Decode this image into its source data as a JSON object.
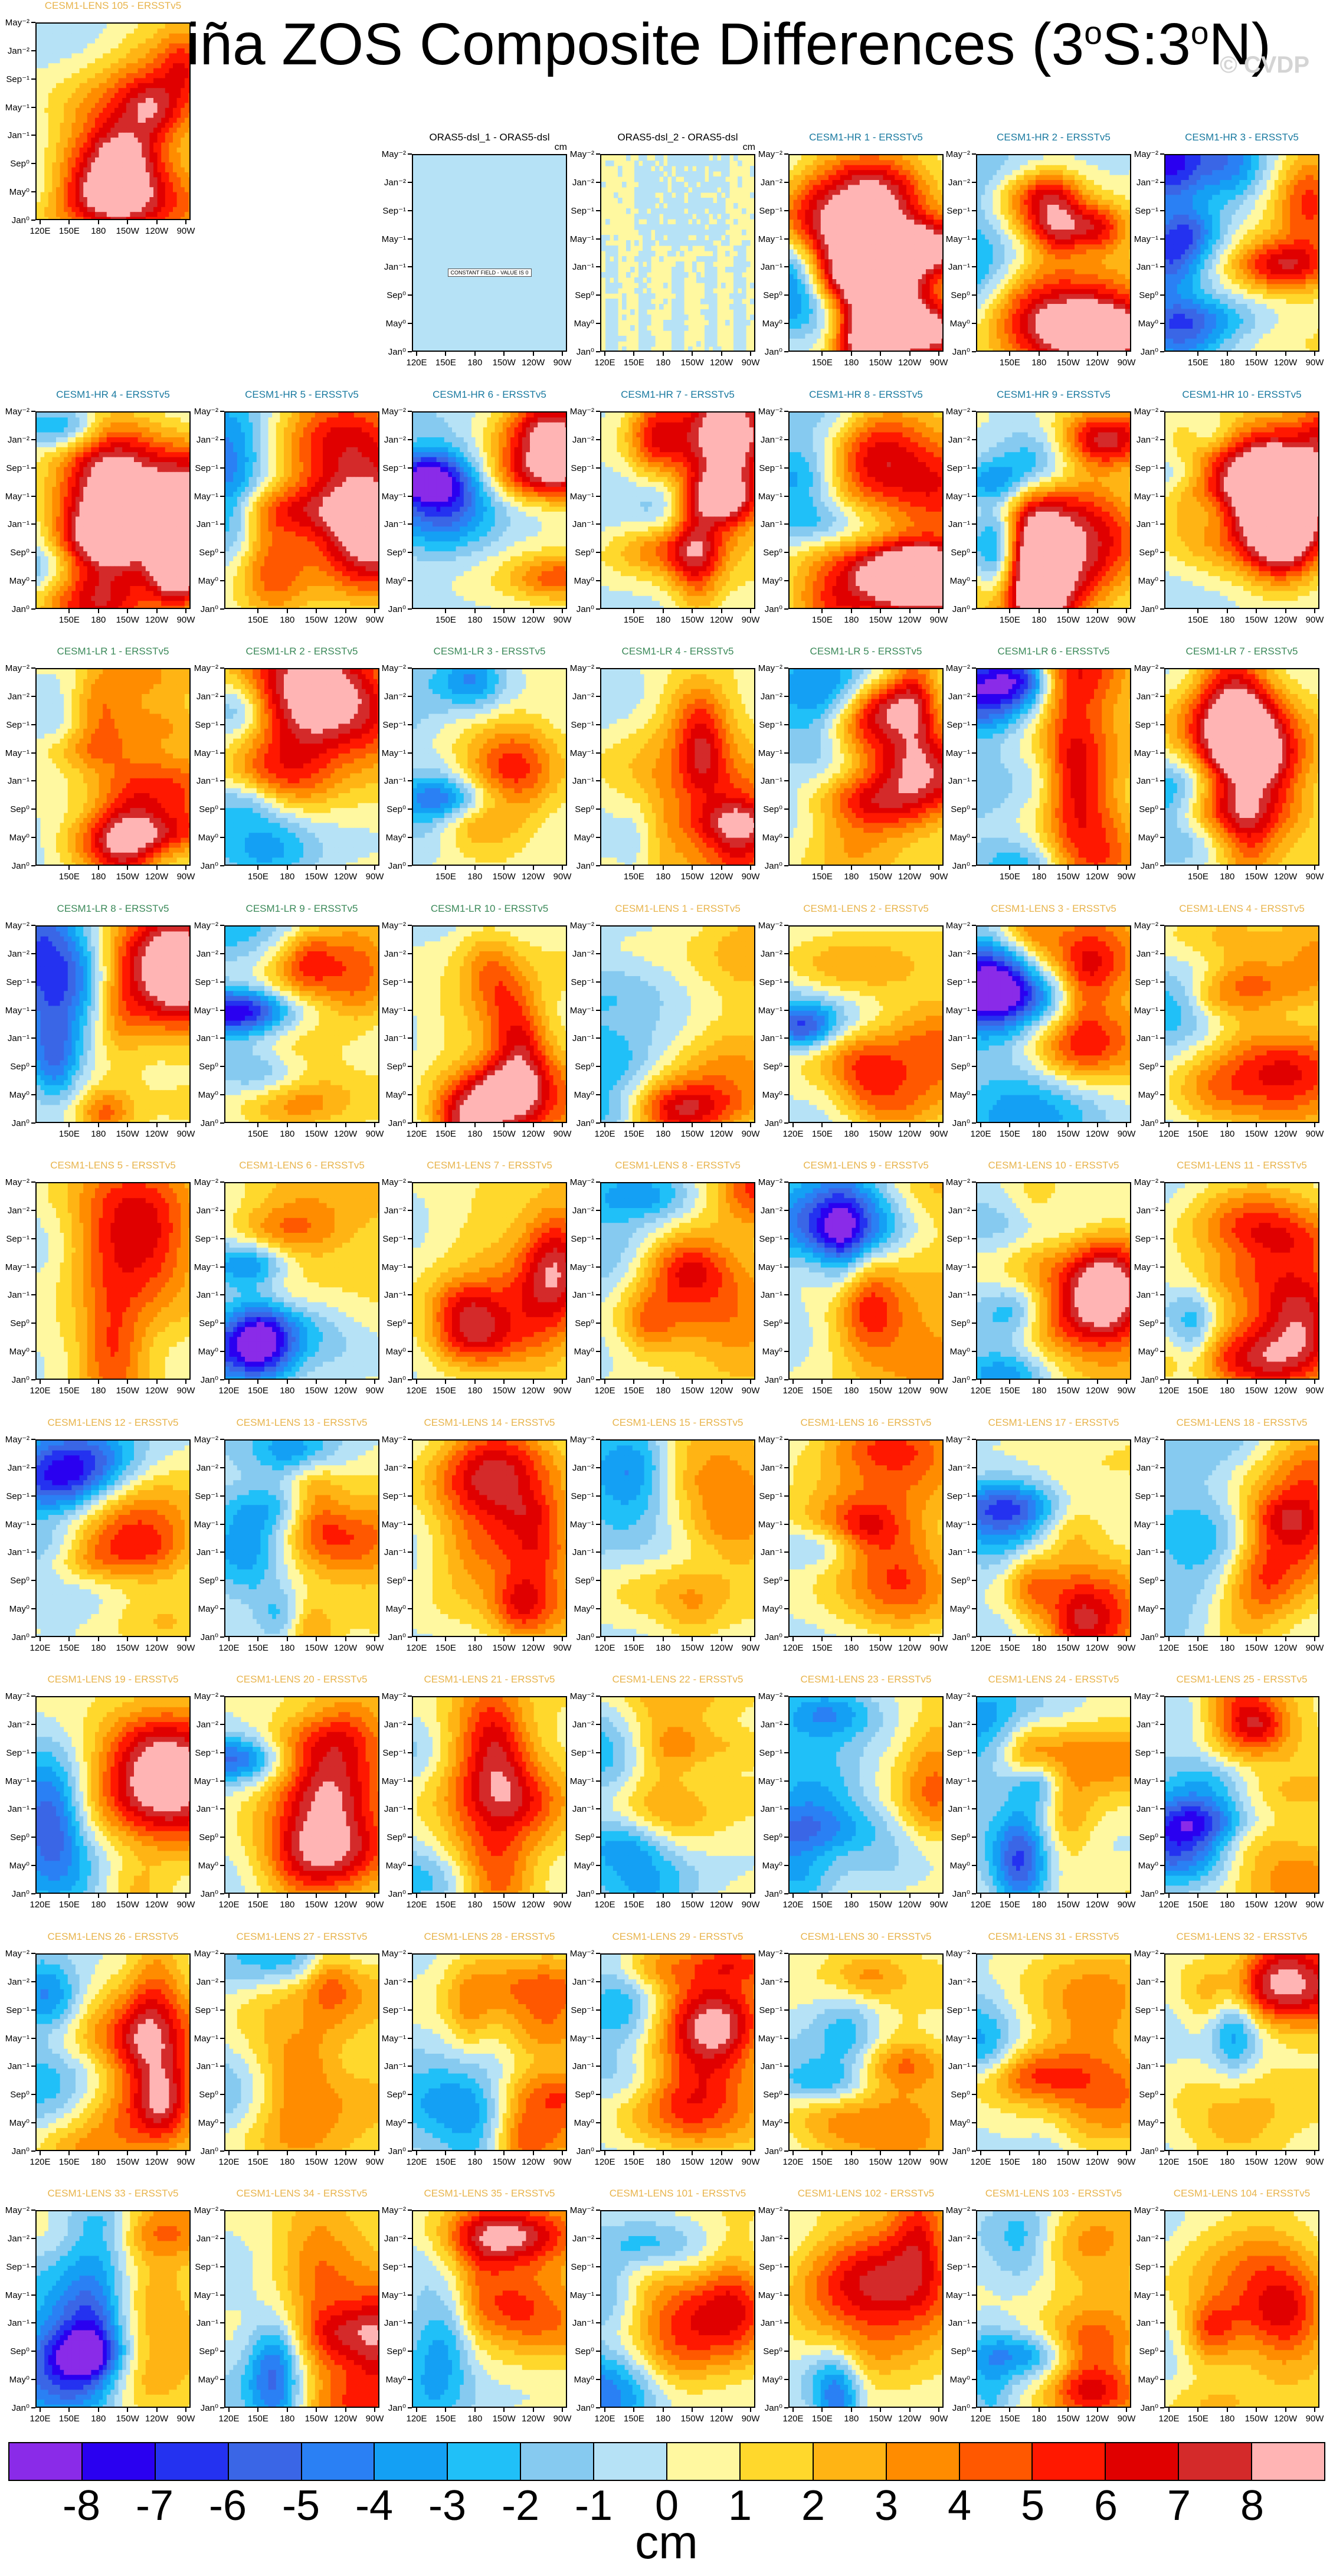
{
  "title": {
    "main": "La Niña ZOS Composite Differences (3",
    "sup1": "o",
    "mid": "S:3",
    "sup2": "o",
    "end": "N)"
  },
  "watermark": "© CVDP",
  "chart_data": {
    "type": "heatmap",
    "variable": "ZOS",
    "units": "cm",
    "color_levels": [
      -8,
      -7,
      -6,
      -5,
      -4,
      -3,
      -2,
      -1,
      0,
      1,
      2,
      3,
      4,
      5,
      6,
      7,
      8
    ],
    "colors": [
      "#8a2be8",
      "#2a00f0",
      "#2432f0",
      "#3a66e6",
      "#2a80f4",
      "#14a0f4",
      "#20c0f8",
      "#86caf0",
      "#b6e2f6",
      "#fff8a0",
      "#ffd82c",
      "#ffb414",
      "#ff8c00",
      "#ff5800",
      "#ff1800",
      "#e00000",
      "#d42a2a",
      "#ffb4b4"
    ],
    "x_ticks_full": [
      "120E",
      "150E",
      "180",
      "150W",
      "120W",
      "90W"
    ],
    "x_ticks_cut": [
      "150E",
      "180",
      "150W",
      "120W",
      "90W"
    ],
    "y_ticks_full": [
      "Jan⁰",
      "May⁰",
      "Sep⁰",
      "Jan⁻¹",
      "May⁻¹",
      "Sep⁻¹",
      "Jan⁻²",
      "May⁻²"
    ],
    "panels": [
      {
        "title": "ORAS5-dsl_1 - ORAS5-dsl",
        "unit": "cm",
        "style": "const",
        "note": "CONSTANT FIELD - VALUE IS 0"
      },
      {
        "title": "ORAS5-dsl_2 - ORAS5-dsl",
        "unit": "cm",
        "style": "oras2"
      },
      {
        "title": "CESM1-HR 1 - ERSSTv5",
        "family": "HR"
      },
      {
        "title": "CESM1-HR 2 - ERSSTv5",
        "family": "HR"
      },
      {
        "title": "CESM1-HR 3 - ERSSTv5",
        "family": "HR"
      },
      {
        "title": "CESM1-HR 4 - ERSSTv5",
        "family": "HR"
      },
      {
        "title": "CESM1-HR 5 - ERSSTv5",
        "family": "HR"
      },
      {
        "title": "CESM1-HR 6 - ERSSTv5",
        "family": "HR"
      },
      {
        "title": "CESM1-HR 7 - ERSSTv5",
        "family": "HR"
      },
      {
        "title": "CESM1-HR 8 - ERSSTv5",
        "family": "HR"
      },
      {
        "title": "CESM1-HR 9 - ERSSTv5",
        "family": "HR"
      },
      {
        "title": "CESM1-HR 10 - ERSSTv5",
        "family": "HR"
      },
      {
        "title": "CESM1-LR 1 - ERSSTv5",
        "family": "LR"
      },
      {
        "title": "CESM1-LR 2 - ERSSTv5",
        "family": "LR"
      },
      {
        "title": "CESM1-LR 3 - ERSSTv5",
        "family": "LR"
      },
      {
        "title": "CESM1-LR 4 - ERSSTv5",
        "family": "LR"
      },
      {
        "title": "CESM1-LR 5 - ERSSTv5",
        "family": "LR"
      },
      {
        "title": "CESM1-LR 6 - ERSSTv5",
        "family": "LR"
      },
      {
        "title": "CESM1-LR 7 - ERSSTv5",
        "family": "LR"
      },
      {
        "title": "CESM1-LR 8 - ERSSTv5",
        "family": "LR"
      },
      {
        "title": "CESM1-LR 9 - ERSSTv5",
        "family": "LR"
      },
      {
        "title": "CESM1-LR 10 - ERSSTv5",
        "family": "LR"
      },
      {
        "title": "CESM1-LENS 1 - ERSSTv5",
        "family": "LENS"
      },
      {
        "title": "CESM1-LENS 2 - ERSSTv5",
        "family": "LENS"
      },
      {
        "title": "CESM1-LENS 3 - ERSSTv5",
        "family": "LENS"
      },
      {
        "title": "CESM1-LENS 4 - ERSSTv5",
        "family": "LENS"
      },
      {
        "title": "CESM1-LENS 5 - ERSSTv5",
        "family": "LENS"
      },
      {
        "title": "CESM1-LENS 6 - ERSSTv5",
        "family": "LENS"
      },
      {
        "title": "CESM1-LENS 7 - ERSSTv5",
        "family": "LENS"
      },
      {
        "title": "CESM1-LENS 8 - ERSSTv5",
        "family": "LENS"
      },
      {
        "title": "CESM1-LENS 9 - ERSSTv5",
        "family": "LENS"
      },
      {
        "title": "CESM1-LENS 10 - ERSSTv5",
        "family": "LENS"
      },
      {
        "title": "CESM1-LENS 11 - ERSSTv5",
        "family": "LENS"
      },
      {
        "title": "CESM1-LENS 12 - ERSSTv5",
        "family": "LENS"
      },
      {
        "title": "CESM1-LENS 13 - ERSSTv5",
        "family": "LENS"
      },
      {
        "title": "CESM1-LENS 14 - ERSSTv5",
        "family": "LENS"
      },
      {
        "title": "CESM1-LENS 15 - ERSSTv5",
        "family": "LENS"
      },
      {
        "title": "CESM1-LENS 16 - ERSSTv5",
        "family": "LENS"
      },
      {
        "title": "CESM1-LENS 17 - ERSSTv5",
        "family": "LENS"
      },
      {
        "title": "CESM1-LENS 18 - ERSSTv5",
        "family": "LENS"
      },
      {
        "title": "CESM1-LENS 19 - ERSSTv5",
        "family": "LENS"
      },
      {
        "title": "CESM1-LENS 20 - ERSSTv5",
        "family": "LENS"
      },
      {
        "title": "CESM1-LENS 21 - ERSSTv5",
        "family": "LENS"
      },
      {
        "title": "CESM1-LENS 22 - ERSSTv5",
        "family": "LENS"
      },
      {
        "title": "CESM1-LENS 23 - ERSSTv5",
        "family": "LENS"
      },
      {
        "title": "CESM1-LENS 24 - ERSSTv5",
        "family": "LENS"
      },
      {
        "title": "CESM1-LENS 25 - ERSSTv5",
        "family": "LENS"
      },
      {
        "title": "CESM1-LENS 26 - ERSSTv5",
        "family": "LENS"
      },
      {
        "title": "CESM1-LENS 27 - ERSSTv5",
        "family": "LENS"
      },
      {
        "title": "CESM1-LENS 28 - ERSSTv5",
        "family": "LENS"
      },
      {
        "title": "CESM1-LENS 29 - ERSSTv5",
        "family": "LENS"
      },
      {
        "title": "CESM1-LENS 30 - ERSSTv5",
        "family": "LENS"
      },
      {
        "title": "CESM1-LENS 31 - ERSSTv5",
        "family": "LENS"
      },
      {
        "title": "CESM1-LENS 32 - ERSSTv5",
        "family": "LENS"
      },
      {
        "title": "CESM1-LENS 33 - ERSSTv5",
        "family": "LENS"
      },
      {
        "title": "CESM1-LENS 34 - ERSSTv5",
        "family": "LENS"
      },
      {
        "title": "CESM1-LENS 35 - ERSSTv5",
        "family": "LENS"
      },
      {
        "title": "CESM1-LENS 101 - ERSSTv5",
        "family": "LENS"
      },
      {
        "title": "CESM1-LENS 102 - ERSSTv5",
        "family": "LENS"
      },
      {
        "title": "CESM1-LENS 103 - ERSSTv5",
        "family": "LENS"
      },
      {
        "title": "CESM1-LENS 104 - ERSSTv5",
        "family": "LENS"
      },
      {
        "title": "CESM1-LENS 105 - ERSSTv5",
        "family": "LENS"
      }
    ],
    "title_colors": {
      "HR": "#1a7aa0",
      "LR": "#3c8a5a",
      "LENS": "#e8b44c",
      "ORAS": "#000000"
    },
    "colorbar_labels": [
      "-8",
      "-7",
      "-6",
      "-5",
      "-4",
      "-3",
      "-2",
      "-1",
      "0",
      "1",
      "2",
      "3",
      "4",
      "5",
      "6",
      "7",
      "8"
    ],
    "colorbar_unit": "cm"
  }
}
